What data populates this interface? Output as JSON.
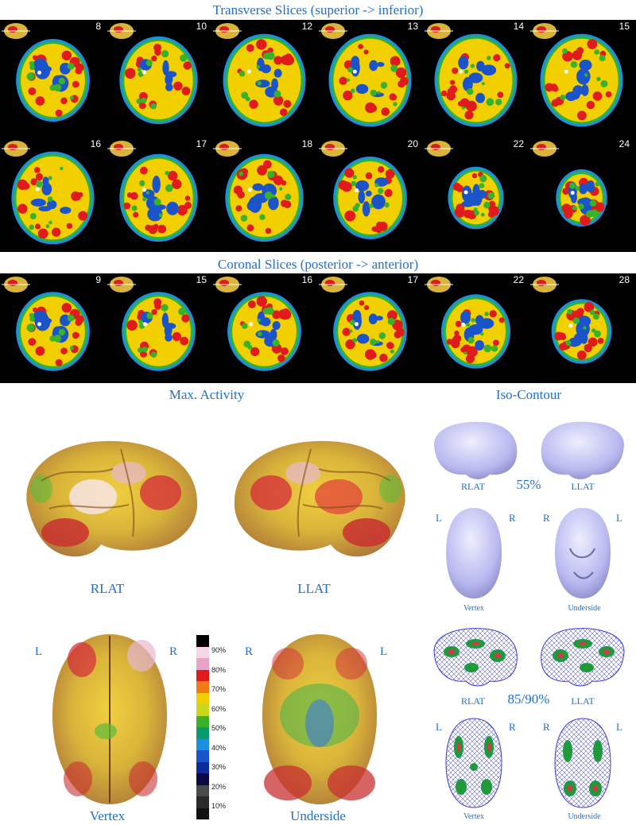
{
  "transverse": {
    "title": "Transverse Slices (superior -> inferior)",
    "slices": [
      "8",
      "10",
      "12",
      "13",
      "14",
      "15",
      "16",
      "17",
      "18",
      "20",
      "22",
      "24"
    ]
  },
  "coronal": {
    "title": "Coronal Slices (posterior -> anterior)",
    "slices": [
      "9",
      "15",
      "16",
      "17",
      "22",
      "28"
    ]
  },
  "max_activity": {
    "title": "Max. Activity",
    "views": {
      "rlat": "RLAT",
      "llat": "LLAT",
      "vertex": "Vertex",
      "underside": "Underside"
    },
    "orientation": {
      "vertex_left": "L",
      "vertex_right": "R",
      "underside_left": "R",
      "underside_right": "L"
    }
  },
  "colorbar": {
    "ticks": [
      "90%",
      "80%",
      "70%",
      "60%",
      "50%",
      "40%",
      "30%",
      "20%",
      "10%"
    ],
    "colors": [
      "#000000",
      "#f6d6e6",
      "#e9a3c6",
      "#e01b1b",
      "#f07a14",
      "#f2d000",
      "#c8d61c",
      "#39b12a",
      "#0a9b6a",
      "#1e8fe0",
      "#1b54c8",
      "#0f2a9a",
      "#0a0a40",
      "#4a4a4a",
      "#2a2a2a",
      "#111111"
    ]
  },
  "iso_contour": {
    "title": "Iso-Contour",
    "level_a": "55%",
    "level_b": "85/90%",
    "rlat": "RLAT",
    "llat": "LLAT",
    "vertex": "Vertex",
    "underside": "Underside",
    "L": "L",
    "R": "R"
  },
  "colors": {
    "label_blue": "#1f6fd1",
    "mesh_blue": "#3a3ad8",
    "hot_green": "#1e9a3a",
    "hot_red": "#e0304a"
  }
}
